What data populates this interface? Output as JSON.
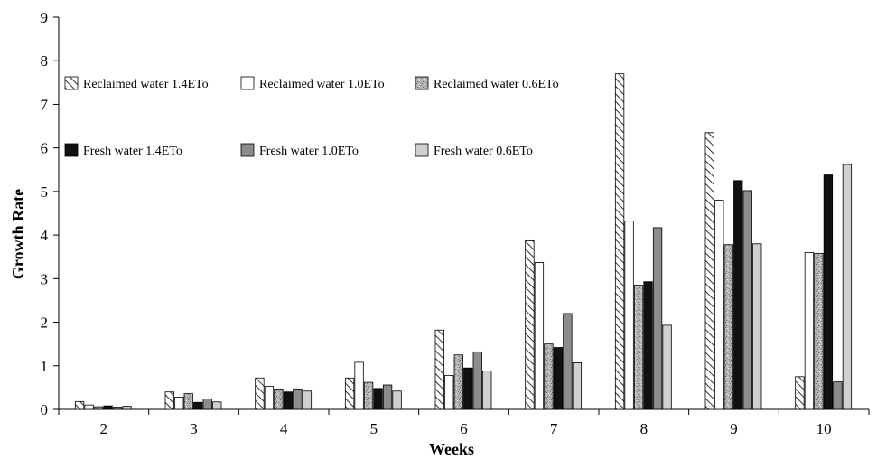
{
  "chart_data": {
    "type": "bar",
    "title": "",
    "xlabel": "Weeks",
    "ylabel": "Growth Rate",
    "ylim": [
      0,
      9
    ],
    "yticks": [
      0,
      1,
      2,
      3,
      4,
      5,
      6,
      7,
      8,
      9
    ],
    "grid": false,
    "legend_position": "top-left inside plot",
    "categories": [
      "2",
      "3",
      "4",
      "5",
      "6",
      "7",
      "8",
      "9",
      "10"
    ],
    "series": [
      {
        "name": "Reclaimed water 1.4ETo",
        "pattern": "diagonal-hatch",
        "color": "#ffffff",
        "values": [
          0.18,
          0.4,
          0.72,
          0.72,
          1.82,
          3.87,
          7.7,
          6.35,
          0.75
        ]
      },
      {
        "name": "Reclaimed water 1.0ETo",
        "pattern": "solid",
        "color": "#ffffff",
        "values": [
          0.1,
          0.28,
          0.53,
          1.08,
          0.78,
          3.37,
          4.32,
          4.8,
          3.6
        ]
      },
      {
        "name": "Reclaimed water 0.6ETo",
        "pattern": "speckle",
        "color": "#a8a8a8",
        "values": [
          0.06,
          0.36,
          0.47,
          0.62,
          1.25,
          1.5,
          2.85,
          3.78,
          3.58
        ]
      },
      {
        "name": "Fresh water 1.4ETo",
        "pattern": "solid",
        "color": "#111111",
        "values": [
          0.08,
          0.16,
          0.4,
          0.48,
          0.95,
          1.42,
          2.93,
          5.25,
          5.38
        ]
      },
      {
        "name": "Fresh water 1.0ETo",
        "pattern": "solid",
        "color": "#8c8c8c",
        "values": [
          0.05,
          0.24,
          0.47,
          0.56,
          1.32,
          2.2,
          4.17,
          5.02,
          0.63
        ]
      },
      {
        "name": "Fresh water 0.6ETo",
        "pattern": "solid",
        "color": "#d0d0d0",
        "values": [
          0.07,
          0.17,
          0.42,
          0.42,
          0.88,
          1.07,
          1.93,
          3.8,
          5.62
        ]
      }
    ]
  }
}
